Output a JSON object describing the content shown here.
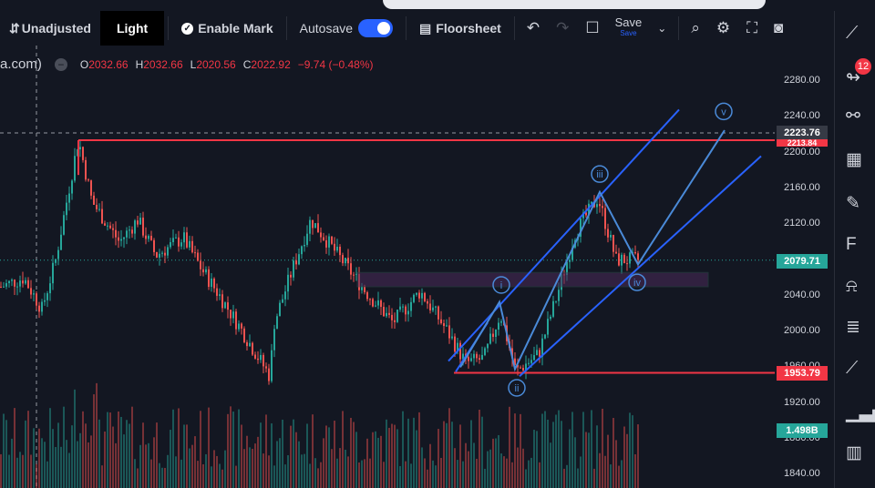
{
  "toolbar": {
    "adjust_label": "Unadjusted",
    "theme_label": "Light",
    "mark_label": "Enable Mark",
    "autosave_label": "Autosave",
    "floorsheet_label": "Floorsheet",
    "save_label": "Save",
    "save_sub_label": "Save"
  },
  "legend": {
    "symbol_fragment": "a.com)",
    "open_key": "O",
    "open_value": "2032.66",
    "high_key": "H",
    "high_value": "2032.66",
    "low_key": "L",
    "low_value": "2020.56",
    "close_key": "C",
    "close_value": "2022.92",
    "change_value": "−9.74 (−0.48%)"
  },
  "sidebar": {
    "alerts_badge": "12"
  },
  "price_axis": {
    "ticks": [
      "2280.00",
      "2240.00",
      "2200.00",
      "2160.00",
      "2120.00",
      "2080.00",
      "2040.00",
      "2000.00",
      "1960.00",
      "1920.00",
      "1880.00",
      "1840.00"
    ],
    "crosshair_label": "2223.76",
    "resistance_label": "2213.84",
    "last_price_label": "2079.71",
    "support_label": "1953.79",
    "volume_label": "1.498B"
  },
  "waves": {
    "i": "i",
    "ii": "ii",
    "iii": "iii",
    "iv": "iv",
    "v": "v"
  },
  "colors": {
    "up": "#26a69a",
    "down": "#ef5350",
    "accent": "#2962ff",
    "channel": "#2962ff",
    "resistance": "#f23645"
  }
}
